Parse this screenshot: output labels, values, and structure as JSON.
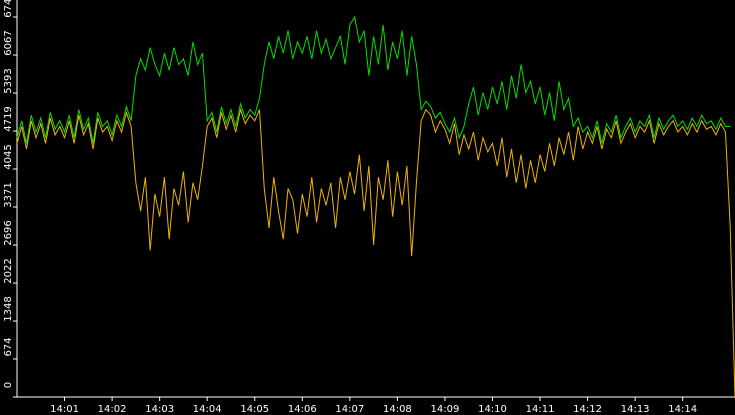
{
  "chart_data": {
    "type": "line",
    "x": [
      0,
      0.1,
      0.2,
      0.3,
      0.4,
      0.5,
      0.6,
      0.7,
      0.8,
      0.9,
      1,
      1.1,
      1.2,
      1.3,
      1.4,
      1.5,
      1.6,
      1.7,
      1.8,
      1.9,
      2,
      2.1,
      2.2,
      2.3,
      2.4,
      2.5,
      2.6,
      2.7,
      2.8,
      2.9,
      3,
      3.1,
      3.2,
      3.3,
      3.4,
      3.5,
      3.6,
      3.7,
      3.8,
      3.9,
      4,
      4.1,
      4.2,
      4.3,
      4.4,
      4.5,
      4.6,
      4.7,
      4.8,
      4.9,
      5,
      5.1,
      5.2,
      5.3,
      5.4,
      5.5,
      5.6,
      5.7,
      5.8,
      5.9,
      6,
      6.1,
      6.2,
      6.3,
      6.4,
      6.5,
      6.6,
      6.7,
      6.8,
      6.9,
      7,
      7.1,
      7.2,
      7.3,
      7.4,
      7.5,
      7.6,
      7.7,
      7.8,
      7.9,
      8,
      8.1,
      8.2,
      8.3,
      8.4,
      8.5,
      8.6,
      8.7,
      8.8,
      8.9,
      9,
      9.1,
      9.2,
      9.3,
      9.4,
      9.5,
      9.6,
      9.7,
      9.8,
      9.9,
      10,
      10.1,
      10.2,
      10.3,
      10.4,
      10.5,
      10.6,
      10.7,
      10.8,
      10.9,
      11,
      11.1,
      11.2,
      11.3,
      11.4,
      11.5,
      11.6,
      11.7,
      11.8,
      11.9,
      12,
      12.1,
      12.2,
      12.3,
      12.4,
      12.5,
      12.6,
      12.7,
      12.8,
      12.9,
      13,
      13.1,
      13.2,
      13.3,
      13.4,
      13.5,
      13.6,
      13.7,
      13.8,
      13.9,
      14,
      14.1,
      14.2,
      14.3,
      14.4,
      14.5,
      14.6,
      14.7,
      14.8,
      14.9,
      15,
      15.1
    ],
    "series": [
      {
        "color": "#00e000",
        "values": [
          4600,
          4900,
          4500,
          5000,
          4700,
          4950,
          4600,
          5050,
          4750,
          4900,
          4700,
          5000,
          4600,
          5100,
          4750,
          4950,
          4500,
          5050,
          4800,
          4900,
          4650,
          5000,
          4800,
          5150,
          4900,
          5700,
          6000,
          5800,
          6200,
          5900,
          5700,
          6100,
          5800,
          6200,
          5900,
          6000,
          5700,
          6300,
          5900,
          6100,
          4900,
          5050,
          4700,
          5150,
          4850,
          5100,
          4800,
          5200,
          4950,
          5100,
          5000,
          5300,
          5900,
          6300,
          6000,
          6400,
          6100,
          6500,
          6000,
          6300,
          6100,
          6400,
          6000,
          6500,
          6100,
          6350,
          6000,
          6200,
          6400,
          5900,
          6600,
          6742,
          6300,
          6500,
          5700,
          6400,
          5900,
          6600,
          5800,
          6300,
          6000,
          6500,
          5700,
          6400,
          5900,
          5100,
          5250,
          5150,
          4950,
          5050,
          4850,
          4700,
          4950,
          4600,
          4800,
          5200,
          5500,
          5000,
          5400,
          5100,
          5500,
          5200,
          5600,
          5100,
          5700,
          5300,
          5900,
          5400,
          5600,
          5200,
          5500,
          5000,
          5400,
          4900,
          5600,
          5100,
          5300,
          4800,
          4950,
          4700,
          4800,
          4600,
          4900,
          4500,
          4850,
          4700,
          5000,
          4600,
          4800,
          4950,
          4700,
          4900,
          4800,
          5000,
          4600,
          4950,
          4750,
          4900,
          5000,
          4800,
          4900,
          4750,
          4950,
          4800,
          5000,
          4850,
          4900,
          4750,
          4950,
          4800,
          4800,
          null
        ]
      },
      {
        "color": "#f0b400",
        "values": [
          4500,
          4800,
          4400,
          4900,
          4600,
          4850,
          4500,
          4950,
          4650,
          4800,
          4600,
          4900,
          4500,
          5000,
          4650,
          4850,
          4400,
          4950,
          4700,
          4800,
          4550,
          4900,
          4700,
          5050,
          4800,
          3800,
          3300,
          3900,
          2600,
          3600,
          3200,
          3900,
          2800,
          3700,
          3400,
          4000,
          3100,
          3800,
          3500,
          4100,
          4800,
          4950,
          4600,
          5050,
          4750,
          5000,
          4700,
          5100,
          4850,
          5000,
          4900,
          5100,
          3700,
          3000,
          3900,
          3300,
          2800,
          3700,
          3500,
          2900,
          3600,
          3200,
          3900,
          3100,
          3700,
          3400,
          3800,
          3000,
          3900,
          3500,
          4000,
          3600,
          4300,
          3300,
          4100,
          2700,
          3900,
          3500,
          4200,
          3200,
          4000,
          3400,
          4100,
          2500,
          3800,
          4900,
          5100,
          5000,
          4700,
          4900,
          4750,
          4500,
          4850,
          4300,
          4650,
          4400,
          4700,
          4200,
          4600,
          4350,
          4500,
          4100,
          4600,
          3900,
          4400,
          3800,
          4300,
          3700,
          4200,
          3800,
          4300,
          4000,
          4500,
          4100,
          4600,
          4300,
          4700,
          4200,
          4800,
          4400,
          4700,
          4500,
          4800,
          4400,
          4750,
          4600,
          4900,
          4500,
          4700,
          4850,
          4600,
          4800,
          4700,
          4900,
          4500,
          4850,
          4650,
          4800,
          4900,
          4700,
          4800,
          4650,
          4850,
          4700,
          4900,
          4750,
          4800,
          4650,
          4850,
          4700,
          3000,
          0
        ]
      }
    ],
    "xlim": [
      0,
      15.1
    ],
    "ylim": [
      0,
      6742
    ],
    "yticks": [
      0,
      674,
      1348,
      2022,
      2696,
      3371,
      4045,
      4719,
      5393,
      6067,
      6742
    ],
    "xticks": [
      {
        "value": 1,
        "label": "14:01"
      },
      {
        "value": 2,
        "label": "14:02"
      },
      {
        "value": 3,
        "label": "14:03"
      },
      {
        "value": 4,
        "label": "14:04"
      },
      {
        "value": 5,
        "label": "14:05"
      },
      {
        "value": 6,
        "label": "14:06"
      },
      {
        "value": 7,
        "label": "14:07"
      },
      {
        "value": 8,
        "label": "14:08"
      },
      {
        "value": 9,
        "label": "14:09"
      },
      {
        "value": 10,
        "label": "14:10"
      },
      {
        "value": 11,
        "label": "14:11"
      },
      {
        "value": 12,
        "label": "14:12"
      },
      {
        "value": 13,
        "label": "14:13"
      },
      {
        "value": 14,
        "label": "14:14"
      }
    ]
  }
}
